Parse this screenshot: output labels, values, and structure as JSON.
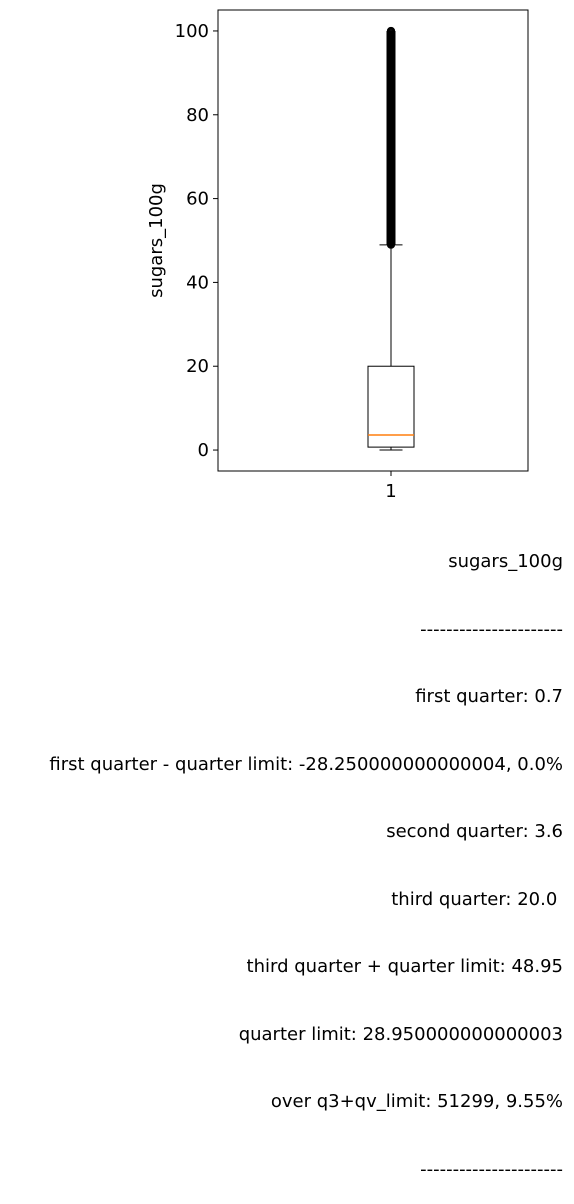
{
  "chart_data": {
    "type": "boxplot",
    "ylabel": "sugars_100g",
    "categories": [
      "1"
    ],
    "ylim": [
      -5,
      105
    ],
    "yticks": [
      0,
      20,
      40,
      60,
      80,
      100
    ],
    "grid": false,
    "boxes": [
      {
        "category": "1",
        "whisker_low": 0,
        "q1": 0.7,
        "median": 3.6,
        "q3": 20.0,
        "whisker_high": 48.95,
        "outlier_range": [
          49,
          100
        ]
      }
    ],
    "colors": {
      "box": "#000000",
      "median": "#ff7f0e",
      "outliers": "#000000"
    }
  },
  "stats": {
    "title": "sugars_100g",
    "sep_top": "----------------------",
    "q1": "first quarter: 0.7",
    "q1_limit": "first quarter - quarter limit: -28.250000000000004, 0.0%",
    "q2": "second quarter: 3.6",
    "q3": "third quarter: 20.0 ",
    "q3_limit": "third quarter + quarter limit: 48.95",
    "qlimit": "quarter limit: 28.950000000000003",
    "over": "over q3+qv_limit: 51299, 9.55%",
    "sep_bottom": "----------------------"
  }
}
